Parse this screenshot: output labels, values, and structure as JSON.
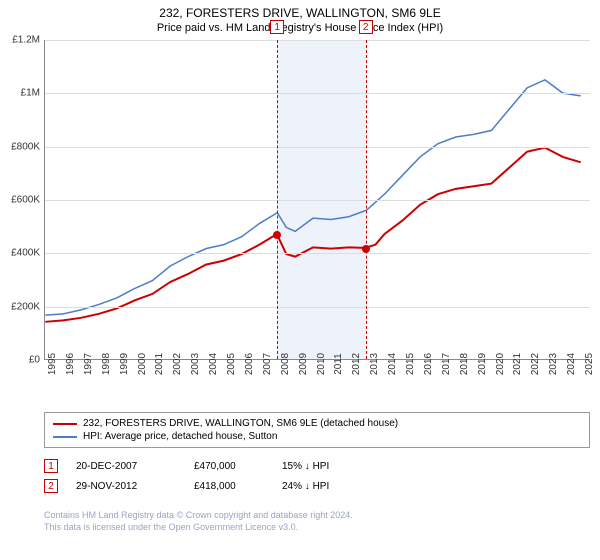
{
  "title": "232, FORESTERS DRIVE, WALLINGTON, SM6 9LE",
  "subtitle": "Price paid vs. HM Land Registry's House Price Index (HPI)",
  "chart": {
    "type": "line",
    "ylim": [
      0,
      1200000
    ],
    "ytick_step": 200000,
    "ytick_labels": [
      "£0",
      "£200K",
      "£400K",
      "£600K",
      "£800K",
      "£1M",
      "£1.2M"
    ],
    "xlim": [
      1995,
      2025.5
    ],
    "xtick_years": [
      1995,
      1996,
      1997,
      1998,
      1999,
      2000,
      2001,
      2002,
      2003,
      2004,
      2005,
      2006,
      2007,
      2008,
      2009,
      2010,
      2011,
      2012,
      2013,
      2014,
      2015,
      2016,
      2017,
      2018,
      2019,
      2020,
      2021,
      2022,
      2023,
      2024,
      2025
    ],
    "grid_color": "#dddddd",
    "background_color": "#ffffff",
    "band_color": "#eef2fb",
    "band_start": 2007.97,
    "band_end": 2012.91,
    "series": [
      {
        "name": "property",
        "label": "232, FORESTERS DRIVE, WALLINGTON, SM6 9LE (detached house)",
        "color": "#cc0000",
        "line_width": 2,
        "points": [
          [
            1995,
            140000
          ],
          [
            1996,
            145000
          ],
          [
            1997,
            155000
          ],
          [
            1998,
            170000
          ],
          [
            1999,
            190000
          ],
          [
            2000,
            220000
          ],
          [
            2001,
            245000
          ],
          [
            2002,
            290000
          ],
          [
            2003,
            320000
          ],
          [
            2004,
            355000
          ],
          [
            2005,
            370000
          ],
          [
            2006,
            395000
          ],
          [
            2007,
            430000
          ],
          [
            2007.97,
            470000
          ],
          [
            2008.5,
            395000
          ],
          [
            2009,
            385000
          ],
          [
            2010,
            420000
          ],
          [
            2011,
            415000
          ],
          [
            2012,
            420000
          ],
          [
            2012.91,
            418000
          ],
          [
            2013.5,
            430000
          ],
          [
            2014,
            470000
          ],
          [
            2015,
            520000
          ],
          [
            2016,
            580000
          ],
          [
            2017,
            620000
          ],
          [
            2018,
            640000
          ],
          [
            2019,
            650000
          ],
          [
            2020,
            660000
          ],
          [
            2021,
            720000
          ],
          [
            2022,
            780000
          ],
          [
            2023,
            795000
          ],
          [
            2024,
            760000
          ],
          [
            2025,
            740000
          ]
        ]
      },
      {
        "name": "hpi",
        "label": "HPI: Average price, detached house, Sutton",
        "color": "#4a7ec8",
        "line_width": 1.5,
        "points": [
          [
            1995,
            165000
          ],
          [
            1996,
            170000
          ],
          [
            1997,
            185000
          ],
          [
            1998,
            205000
          ],
          [
            1999,
            230000
          ],
          [
            2000,
            265000
          ],
          [
            2001,
            295000
          ],
          [
            2002,
            350000
          ],
          [
            2003,
            385000
          ],
          [
            2004,
            415000
          ],
          [
            2005,
            430000
          ],
          [
            2006,
            460000
          ],
          [
            2007,
            510000
          ],
          [
            2008,
            550000
          ],
          [
            2008.5,
            495000
          ],
          [
            2009,
            480000
          ],
          [
            2010,
            530000
          ],
          [
            2011,
            525000
          ],
          [
            2012,
            535000
          ],
          [
            2013,
            560000
          ],
          [
            2014,
            620000
          ],
          [
            2015,
            690000
          ],
          [
            2016,
            760000
          ],
          [
            2017,
            810000
          ],
          [
            2018,
            835000
          ],
          [
            2019,
            845000
          ],
          [
            2020,
            860000
          ],
          [
            2021,
            940000
          ],
          [
            2022,
            1020000
          ],
          [
            2023,
            1050000
          ],
          [
            2024,
            1000000
          ],
          [
            2025,
            990000
          ]
        ]
      }
    ],
    "sale_markers": [
      {
        "n": "1",
        "year": 2007.97,
        "price": 470000
      },
      {
        "n": "2",
        "year": 2012.91,
        "price": 418000
      }
    ],
    "marker_color": "#cc0000",
    "dot_color": "#cc0000"
  },
  "legend": {
    "items": [
      {
        "color": "#cc0000",
        "label": "232, FORESTERS DRIVE, WALLINGTON, SM6 9LE (detached house)"
      },
      {
        "color": "#4a7ec8",
        "label": "HPI: Average price, detached house, Sutton"
      }
    ]
  },
  "sales": [
    {
      "n": "1",
      "date": "20-DEC-2007",
      "price": "£470,000",
      "diff": "15% ↓ HPI"
    },
    {
      "n": "2",
      "date": "29-NOV-2012",
      "price": "£418,000",
      "diff": "24% ↓ HPI"
    }
  ],
  "footer_line1": "Contains HM Land Registry data © Crown copyright and database right 2024.",
  "footer_line2": "This data is licensed under the Open Government Licence v3.0."
}
